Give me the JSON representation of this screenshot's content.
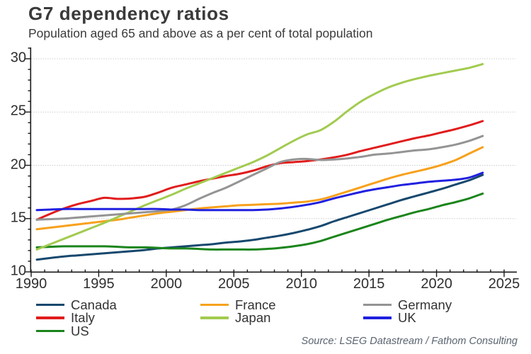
{
  "title": "G7 dependency ratios",
  "subtitle": "Population aged 65 and above as a per cent of total population",
  "source": "Source: LSEG Datastream / Fathom Consulting",
  "chart_data": {
    "type": "line",
    "x": [
      1990,
      1991,
      1992,
      1993,
      1994,
      1995,
      1996,
      1997,
      1998,
      1999,
      2000,
      2001,
      2002,
      2003,
      2004,
      2005,
      2006,
      2007,
      2008,
      2009,
      2010,
      2011,
      2012,
      2013,
      2014,
      2015,
      2016,
      2017,
      2018,
      2019,
      2020,
      2021,
      2022,
      2023
    ],
    "series": [
      {
        "name": "Canada",
        "color": "#17486e",
        "values": [
          11.15,
          11.3,
          11.45,
          11.55,
          11.65,
          11.75,
          11.85,
          11.95,
          12.05,
          12.2,
          12.3,
          12.4,
          12.5,
          12.6,
          12.75,
          12.85,
          13.0,
          13.2,
          13.4,
          13.65,
          13.95,
          14.3,
          14.75,
          15.15,
          15.55,
          15.95,
          16.35,
          16.75,
          17.1,
          17.45,
          17.8,
          18.2,
          18.6,
          19.1
        ]
      },
      {
        "name": "Italy",
        "color": "#e11c1c",
        "values": [
          14.9,
          15.45,
          15.95,
          16.35,
          16.65,
          16.95,
          16.85,
          16.9,
          17.05,
          17.45,
          17.9,
          18.2,
          18.5,
          18.75,
          19.0,
          19.2,
          19.5,
          19.9,
          20.2,
          20.3,
          20.4,
          20.55,
          20.75,
          21.0,
          21.35,
          21.65,
          21.95,
          22.25,
          22.55,
          22.8,
          23.1,
          23.4,
          23.75,
          24.15
        ]
      },
      {
        "name": "US",
        "color": "#1b851b",
        "values": [
          12.3,
          12.35,
          12.4,
          12.4,
          12.4,
          12.4,
          12.35,
          12.3,
          12.3,
          12.25,
          12.2,
          12.2,
          12.15,
          12.1,
          12.1,
          12.1,
          12.1,
          12.15,
          12.25,
          12.4,
          12.6,
          12.9,
          13.3,
          13.7,
          14.1,
          14.5,
          14.9,
          15.25,
          15.6,
          15.9,
          16.25,
          16.55,
          16.9,
          17.35
        ]
      },
      {
        "name": "France",
        "color": "#f7a11c",
        "values": [
          14.0,
          14.15,
          14.3,
          14.45,
          14.6,
          14.75,
          14.9,
          15.1,
          15.3,
          15.5,
          15.65,
          15.8,
          15.95,
          16.05,
          16.15,
          16.25,
          16.3,
          16.35,
          16.4,
          16.5,
          16.6,
          16.8,
          17.15,
          17.55,
          17.95,
          18.35,
          18.75,
          19.1,
          19.4,
          19.7,
          20.05,
          20.5,
          21.1,
          21.7
        ]
      },
      {
        "name": "Japan",
        "color": "#a2cb50",
        "values": [
          12.1,
          12.6,
          13.1,
          13.6,
          14.1,
          14.6,
          15.15,
          15.7,
          16.25,
          16.75,
          17.25,
          17.8,
          18.3,
          18.8,
          19.3,
          19.8,
          20.3,
          20.9,
          21.6,
          22.3,
          22.9,
          23.3,
          24.1,
          25.1,
          26.0,
          26.7,
          27.3,
          27.75,
          28.1,
          28.4,
          28.65,
          28.9,
          29.15,
          29.5
        ]
      },
      {
        "name": "Germany",
        "color": "#949494",
        "values": [
          14.9,
          14.95,
          15.0,
          15.1,
          15.2,
          15.3,
          15.4,
          15.5,
          15.6,
          15.7,
          15.85,
          16.25,
          16.85,
          17.4,
          17.9,
          18.5,
          19.1,
          19.7,
          20.3,
          20.55,
          20.6,
          20.5,
          20.55,
          20.65,
          20.8,
          21.0,
          21.1,
          21.25,
          21.4,
          21.5,
          21.7,
          21.95,
          22.3,
          22.75
        ]
      },
      {
        "name": "UK",
        "color": "#2020e0",
        "values": [
          15.8,
          15.85,
          15.9,
          15.9,
          15.9,
          15.9,
          15.9,
          15.9,
          15.9,
          15.9,
          15.85,
          15.85,
          15.8,
          15.8,
          15.8,
          15.8,
          15.8,
          15.85,
          15.95,
          16.1,
          16.3,
          16.55,
          16.9,
          17.2,
          17.5,
          17.75,
          17.95,
          18.15,
          18.3,
          18.45,
          18.55,
          18.65,
          18.85,
          19.3
        ]
      }
    ],
    "ylim": [
      10,
      30
    ],
    "xlim": [
      1990,
      2026
    ],
    "y_ticks": [
      10,
      15,
      20,
      25,
      30
    ],
    "x_ticks": [
      1990,
      1995,
      2000,
      2005,
      2010,
      2015,
      2020,
      2025
    ],
    "gridlines_at": [
      15,
      20,
      25,
      30
    ],
    "grid_style": "dotted horizontal",
    "legend_position": "bottom",
    "legend_columns": [
      [
        "Canada",
        "Italy",
        "US"
      ],
      [
        "France",
        "Japan"
      ],
      [
        "Germany",
        "UK"
      ]
    ]
  },
  "colors": {
    "grid": "#cbcbcb",
    "axis": "#1a1a1a",
    "tick_label": "#2e2e2e",
    "title": "#3a3a3a",
    "source": "#5a6470"
  }
}
